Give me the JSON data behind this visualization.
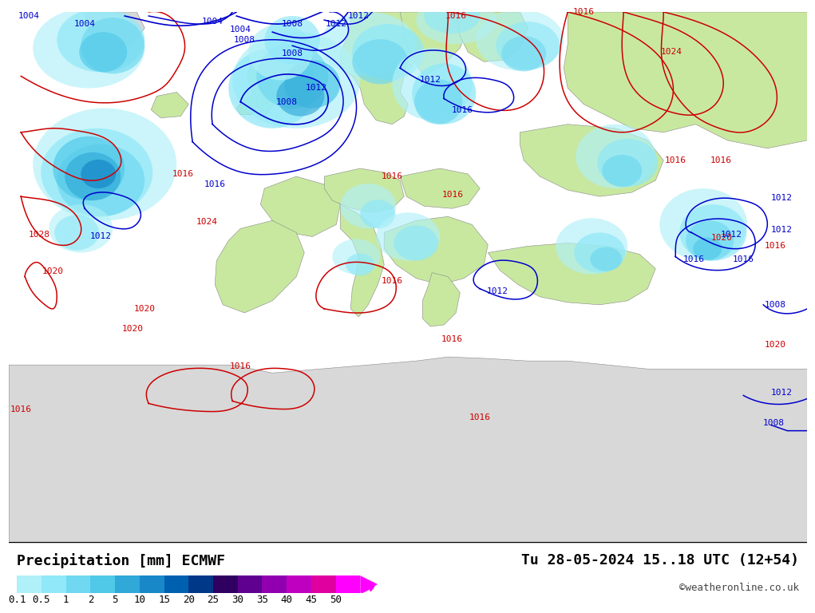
{
  "title_left": "Precipitation [mm] ECMWF",
  "title_right": "Tu 28-05-2024 15..18 UTC (12+54)",
  "credit": "©weatheronline.co.uk",
  "colorbar_levels": [
    0.1,
    0.5,
    1,
    2,
    5,
    10,
    15,
    20,
    25,
    30,
    35,
    40,
    45,
    50
  ],
  "colorbar_colors": [
    "#b0f0f8",
    "#90e8f8",
    "#70d8f0",
    "#50c8e8",
    "#30a8d8",
    "#1888c8",
    "#0060b0",
    "#003888",
    "#300060",
    "#600090",
    "#9000b0",
    "#c000c0",
    "#e000a0",
    "#ff00ff"
  ],
  "map_bg_ocean": "#d8eef8",
  "map_bg_land_grey": "#e8e8e8",
  "map_bg_land_green": "#c8e8a0",
  "pressure_low_color": "#0000cc",
  "pressure_high_color": "#cc0000",
  "title_fontsize": 13,
  "credit_fontsize": 9,
  "tick_fontsize": 9
}
